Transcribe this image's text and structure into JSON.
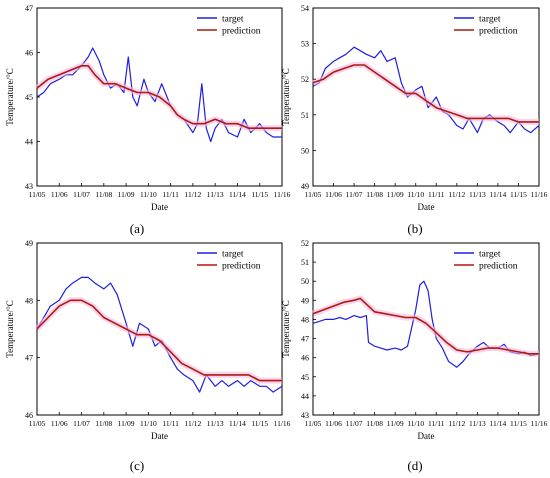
{
  "colors": {
    "target": "#1f1fe0",
    "prediction": "#b01a0a",
    "band": "#f4b8e6",
    "axis": "#000000"
  },
  "chart_data": [
    {
      "panel_label": "(a)",
      "type": "line",
      "xlabel": "Date",
      "ylabel": "Temperature/°C",
      "x_ticks": [
        "11/05",
        "11/06",
        "11/07",
        "11/08",
        "11/09",
        "11/10",
        "11/11",
        "11/12",
        "11/13",
        "11/14",
        "11/15",
        "11/16"
      ],
      "ylim": [
        43,
        47
      ],
      "y_ticks": [
        "43",
        "44",
        "45",
        "46",
        "47"
      ],
      "legend_position": "top-right",
      "series": [
        {
          "name": "target",
          "x": [
            0,
            0.3,
            0.6,
            1,
            1.3,
            1.6,
            2,
            2.3,
            2.5,
            2.8,
            3,
            3.3,
            3.6,
            3.9,
            4.1,
            4.3,
            4.5,
            4.8,
            5,
            5.3,
            5.6,
            6,
            6.3,
            6.6,
            7,
            7.2,
            7.4,
            7.6,
            7.8,
            8,
            8.3,
            8.6,
            9,
            9.3,
            9.6,
            10,
            10.3,
            10.6,
            11
          ],
          "y": [
            45.0,
            45.1,
            45.3,
            45.4,
            45.5,
            45.5,
            45.7,
            45.9,
            46.1,
            45.8,
            45.5,
            45.2,
            45.3,
            45.1,
            45.9,
            45.0,
            44.8,
            45.4,
            45.1,
            44.9,
            45.3,
            44.8,
            44.6,
            44.5,
            44.2,
            44.4,
            45.3,
            44.3,
            44.0,
            44.3,
            44.5,
            44.2,
            44.1,
            44.5,
            44.2,
            44.4,
            44.2,
            44.1,
            44.1
          ]
        },
        {
          "name": "prediction",
          "x": [
            0,
            0.5,
            1,
            1.5,
            2,
            2.3,
            2.6,
            3,
            3.5,
            4,
            4.5,
            5,
            5.5,
            6,
            6.3,
            6.6,
            7,
            7.5,
            8,
            8.5,
            9,
            9.5,
            10,
            10.5,
            11
          ],
          "y": [
            45.2,
            45.4,
            45.5,
            45.6,
            45.7,
            45.7,
            45.5,
            45.3,
            45.3,
            45.2,
            45.1,
            45.1,
            45.0,
            44.8,
            44.6,
            44.5,
            44.4,
            44.4,
            44.5,
            44.4,
            44.4,
            44.3,
            44.3,
            44.3,
            44.3
          ]
        }
      ]
    },
    {
      "panel_label": "(b)",
      "type": "line",
      "xlabel": "Date",
      "ylabel": "Temperature/°C",
      "x_ticks": [
        "11/05",
        "11/06",
        "11/07",
        "11/08",
        "11/09",
        "11/10",
        "11/11",
        "11/12",
        "11/13",
        "11/14",
        "11/15",
        "11/16"
      ],
      "ylim": [
        49,
        54
      ],
      "y_ticks": [
        "49",
        "50",
        "51",
        "52",
        "53",
        "54"
      ],
      "legend_position": "top-right",
      "series": [
        {
          "name": "target",
          "x": [
            0,
            0.3,
            0.6,
            1,
            1.3,
            1.6,
            2,
            2.3,
            2.6,
            3,
            3.3,
            3.6,
            4,
            4.3,
            4.6,
            5,
            5.3,
            5.6,
            6,
            6.3,
            6.6,
            7,
            7.3,
            7.6,
            8,
            8.3,
            8.6,
            9,
            9.3,
            9.6,
            10,
            10.3,
            10.6,
            11
          ],
          "y": [
            51.8,
            51.9,
            52.3,
            52.5,
            52.6,
            52.7,
            52.9,
            52.8,
            52.7,
            52.6,
            52.8,
            52.5,
            52.6,
            51.9,
            51.5,
            51.7,
            51.8,
            51.2,
            51.5,
            51.1,
            51.0,
            50.7,
            50.6,
            50.9,
            50.5,
            50.9,
            51.0,
            50.8,
            50.7,
            50.5,
            50.8,
            50.6,
            50.5,
            50.7
          ]
        },
        {
          "name": "prediction",
          "x": [
            0,
            0.5,
            1,
            1.5,
            2,
            2.5,
            3,
            3.5,
            4,
            4.5,
            5,
            5.5,
            6,
            6.5,
            7,
            7.5,
            8,
            8.5,
            9,
            9.5,
            10,
            10.5,
            11
          ],
          "y": [
            51.9,
            52.0,
            52.2,
            52.3,
            52.4,
            52.4,
            52.2,
            52.0,
            51.8,
            51.6,
            51.6,
            51.4,
            51.2,
            51.1,
            51.0,
            50.9,
            50.9,
            50.9,
            50.9,
            50.9,
            50.8,
            50.8,
            50.8
          ]
        }
      ]
    },
    {
      "panel_label": "(c)",
      "type": "line",
      "xlabel": "Date",
      "ylabel": "Temperature/°C",
      "x_ticks": [
        "11/05",
        "11/06",
        "11/07",
        "11/08",
        "11/09",
        "11/10",
        "11/11",
        "11/12",
        "11/13",
        "11/14",
        "11/15",
        "11/16"
      ],
      "ylim": [
        46,
        49
      ],
      "y_ticks": [
        "46",
        "47",
        "48",
        "49"
      ],
      "legend_position": "top-right",
      "series": [
        {
          "name": "target",
          "x": [
            0,
            0.3,
            0.6,
            1,
            1.3,
            1.6,
            2,
            2.3,
            2.6,
            3,
            3.3,
            3.6,
            4,
            4.3,
            4.6,
            5,
            5.3,
            5.6,
            6,
            6.3,
            6.6,
            7,
            7.3,
            7.6,
            8,
            8.3,
            8.6,
            9,
            9.3,
            9.6,
            10,
            10.3,
            10.6,
            11
          ],
          "y": [
            47.5,
            47.7,
            47.9,
            48.0,
            48.2,
            48.3,
            48.4,
            48.4,
            48.3,
            48.2,
            48.3,
            48.1,
            47.6,
            47.2,
            47.6,
            47.5,
            47.2,
            47.3,
            47.0,
            46.8,
            46.7,
            46.6,
            46.4,
            46.7,
            46.5,
            46.6,
            46.5,
            46.6,
            46.5,
            46.6,
            46.5,
            46.5,
            46.4,
            46.5
          ]
        },
        {
          "name": "prediction",
          "x": [
            0,
            0.5,
            1,
            1.5,
            2,
            2.5,
            3,
            3.5,
            4,
            4.5,
            5,
            5.5,
            6,
            6.5,
            7,
            7.5,
            8,
            8.5,
            9,
            9.5,
            10,
            10.5,
            11
          ],
          "y": [
            47.5,
            47.7,
            47.9,
            48.0,
            48.0,
            47.9,
            47.7,
            47.6,
            47.5,
            47.4,
            47.4,
            47.3,
            47.1,
            46.9,
            46.8,
            46.7,
            46.7,
            46.7,
            46.7,
            46.7,
            46.6,
            46.6,
            46.6
          ]
        }
      ]
    },
    {
      "panel_label": "(d)",
      "type": "line",
      "xlabel": "Date",
      "ylabel": "Temperature/°C",
      "x_ticks": [
        "11/05",
        "11/06",
        "11/07",
        "11/08",
        "11/09",
        "11/10",
        "11/11",
        "11/12",
        "11/13",
        "11/14",
        "11/15",
        "11/16"
      ],
      "ylim": [
        43,
        52
      ],
      "y_ticks": [
        "43",
        "44",
        "45",
        "46",
        "47",
        "48",
        "49",
        "50",
        "51",
        "52"
      ],
      "legend_position": "top-right",
      "series": [
        {
          "name": "target",
          "x": [
            0,
            0.3,
            0.6,
            1,
            1.3,
            1.6,
            2,
            2.3,
            2.6,
            2.7,
            3,
            3.3,
            3.6,
            4,
            4.3,
            4.6,
            5,
            5.2,
            5.4,
            5.6,
            5.8,
            6,
            6.3,
            6.6,
            7,
            7.3,
            7.6,
            8,
            8.3,
            8.6,
            9,
            9.3,
            9.6,
            10,
            10.3,
            10.6,
            11
          ],
          "y": [
            47.8,
            47.9,
            48.0,
            48.0,
            48.1,
            48.0,
            48.2,
            48.1,
            48.2,
            46.8,
            46.6,
            46.5,
            46.4,
            46.5,
            46.4,
            46.6,
            48.5,
            49.8,
            50.0,
            49.5,
            48.0,
            47.0,
            46.5,
            45.8,
            45.5,
            45.8,
            46.2,
            46.6,
            46.8,
            46.5,
            46.5,
            46.7,
            46.3,
            46.2,
            46.3,
            46.1,
            46.2
          ]
        },
        {
          "name": "prediction",
          "x": [
            0,
            0.5,
            1,
            1.5,
            2,
            2.3,
            2.6,
            3,
            3.5,
            4,
            4.5,
            5,
            5.5,
            6,
            6.5,
            7,
            7.5,
            8,
            8.5,
            9,
            9.5,
            10,
            10.5,
            11
          ],
          "y": [
            48.3,
            48.5,
            48.7,
            48.9,
            49.0,
            49.1,
            48.8,
            48.4,
            48.3,
            48.2,
            48.1,
            48.1,
            47.8,
            47.3,
            46.8,
            46.4,
            46.3,
            46.4,
            46.5,
            46.5,
            46.4,
            46.3,
            46.2,
            46.2
          ]
        }
      ]
    }
  ]
}
